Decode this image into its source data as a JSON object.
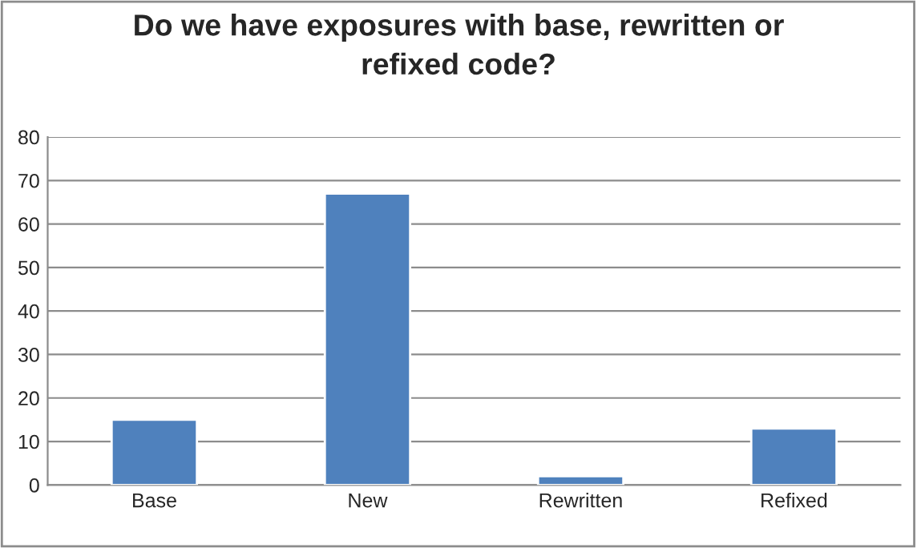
{
  "chart_data": {
    "type": "bar",
    "title": "Do we have exposures with base, rewritten or refixed code?",
    "categories": [
      "Base",
      "New",
      "Rewritten",
      "Refixed"
    ],
    "values": [
      15,
      67,
      2,
      13
    ],
    "color": "#4f81bd",
    "ylim": [
      0,
      80
    ],
    "yticks": [
      0,
      10,
      20,
      30,
      40,
      50,
      60,
      70,
      80
    ],
    "grid": "y",
    "legend": false
  }
}
